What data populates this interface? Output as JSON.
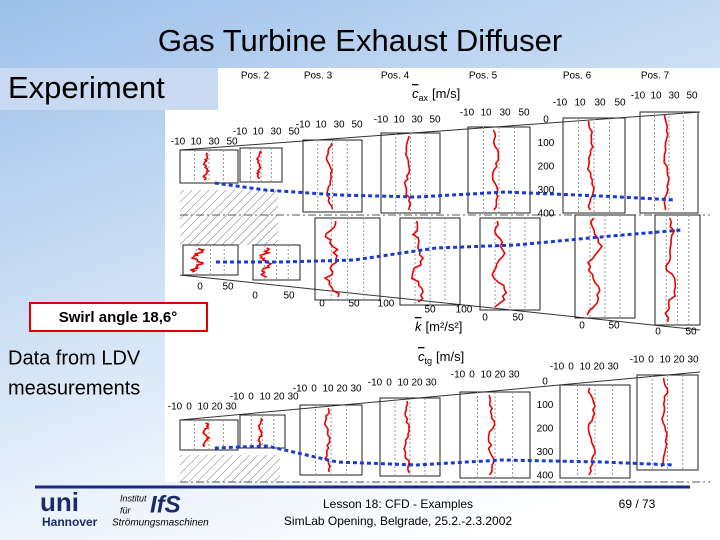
{
  "header": {
    "title": "Gas Turbine Exhaust Diffuser",
    "subtitle": "Experiment"
  },
  "notes": {
    "swirl": "Swirl angle 18,6°",
    "data_lines": [
      "Data from LDV",
      "measurements"
    ]
  },
  "diagram": {
    "positions": [
      "Pos. 2",
      "Pos. 3",
      "Pos. 4",
      "Pos. 5",
      "Pos. 6",
      "Pos. 7"
    ],
    "cax": {
      "symbol": "c",
      "subscript": "ax",
      "unit": "[m/s]",
      "ticks": [
        [
          "-10",
          "10",
          "30",
          "50"
        ],
        [
          "-10",
          "10",
          "30",
          "50"
        ],
        [
          "-10",
          "10",
          "30",
          "50"
        ],
        [
          "-10",
          "10",
          "30",
          "50"
        ],
        [
          "-10",
          "10",
          "30",
          "50"
        ],
        [
          "-10",
          "10",
          "30",
          "50"
        ],
        [
          "-10",
          "10",
          "30",
          "50"
        ]
      ],
      "depth_ticks": [
        "0",
        "100",
        "200",
        "300",
        "400"
      ]
    },
    "k": {
      "symbol": "k",
      "unit": "[m²/s²]",
      "ticks": [
        [
          "0",
          "50"
        ],
        [
          "0",
          "50"
        ],
        [
          "0",
          "50",
          "100"
        ],
        [
          "50",
          "100"
        ],
        [
          "0",
          "50"
        ],
        [
          "0",
          "50"
        ],
        [
          "0",
          "50"
        ]
      ]
    },
    "ctg": {
      "symbol": "c",
      "subscript": "tg",
      "unit": "[m/s]",
      "ticks": [
        [
          "-10",
          "0",
          "10",
          "20",
          "30"
        ],
        [
          "-10",
          "0",
          "10",
          "20",
          "30"
        ],
        [
          "-10",
          "0",
          "10",
          "20",
          "30"
        ],
        [
          "-10",
          "0",
          "10",
          "20",
          "30"
        ],
        [
          "-10",
          "0",
          "10",
          "20",
          "30"
        ],
        [
          "-10",
          "0",
          "10",
          "20",
          "30"
        ],
        [
          "-10",
          "0",
          "10",
          "20",
          "30"
        ]
      ],
      "depth_ticks": [
        "0",
        "100",
        "200",
        "300",
        "400"
      ]
    }
  },
  "footer": {
    "lesson": "Lesson 18: CFD - Examples",
    "event": "SimLab Opening, Belgrade, 25.2.-2.3.2002",
    "page": "69 / 73",
    "logo": {
      "uni": "uni",
      "city": "Hannover",
      "institut": "Institut",
      "fuer": "für",
      "ifs": "IfS",
      "dept": "Strömungsmaschinen"
    }
  }
}
